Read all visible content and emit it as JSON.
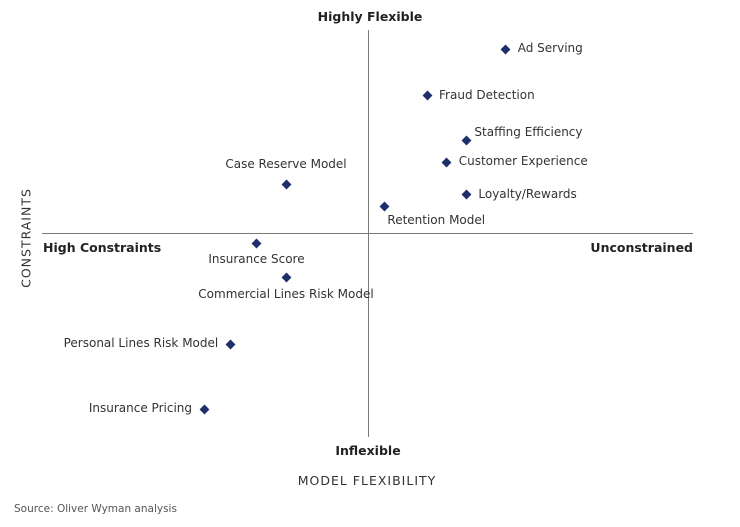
{
  "chart_data": {
    "type": "scatter",
    "title": "",
    "xlabel": "MODEL FLEXIBILITY",
    "ylabel": "CONSTRAINTS",
    "quadrant_labels": {
      "top": "Highly Flexible",
      "bottom": "Inflexible",
      "left": "High Constraints",
      "right": "Unconstrained"
    },
    "xlim": [
      -10,
      10
    ],
    "ylim": [
      -10,
      10
    ],
    "grid": false,
    "legend": null,
    "marker_color": "#1f2f6b",
    "axis_color": "#7a7a7a",
    "points": [
      {
        "label": "Ad Serving",
        "x": 4.2,
        "y": 9.1,
        "label_pos": "right"
      },
      {
        "label": "Fraud Detection",
        "x": 1.8,
        "y": 6.8,
        "label_pos": "right"
      },
      {
        "label": "Staffing Efficiency",
        "x": 3.0,
        "y": 4.6,
        "label_pos": "right-up"
      },
      {
        "label": "Customer Experience",
        "x": 2.4,
        "y": 3.5,
        "label_pos": "right"
      },
      {
        "label": "Loyalty/Rewards",
        "x": 3.0,
        "y": 1.9,
        "label_pos": "right"
      },
      {
        "label": "Retention Model",
        "x": 0.5,
        "y": 1.3,
        "label_pos": "below-right"
      },
      {
        "label": "Case Reserve Model",
        "x": -2.5,
        "y": 2.4,
        "label_pos": "above"
      },
      {
        "label": "Insurance Score",
        "x": -3.4,
        "y": -0.5,
        "label_pos": "below"
      },
      {
        "label": "Commercial Lines Risk Model",
        "x": -2.5,
        "y": -2.2,
        "label_pos": "below"
      },
      {
        "label": "Personal Lines Risk Model",
        "x": -4.2,
        "y": -5.5,
        "label_pos": "left"
      },
      {
        "label": "Insurance Pricing",
        "x": -5.0,
        "y": -8.7,
        "label_pos": "left"
      }
    ]
  },
  "source": "Source: Oliver Wyman analysis"
}
